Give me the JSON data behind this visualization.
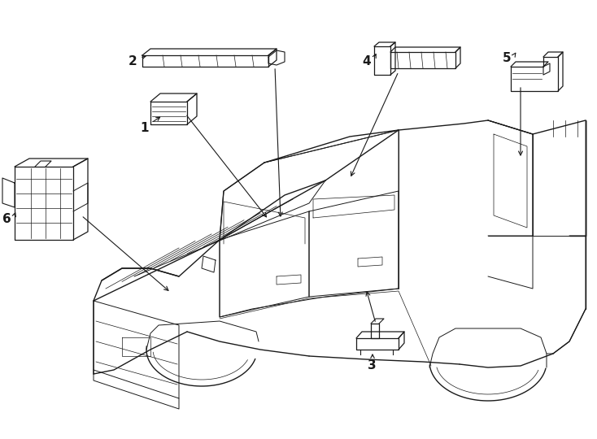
{
  "background_color": "#ffffff",
  "line_color": "#1a1a1a",
  "fig_width": 7.34,
  "fig_height": 5.4,
  "dpi": 100,
  "truck_lw": 1.0,
  "detail_lw": 0.7,
  "thin_lw": 0.5,
  "component_lw": 0.9,
  "arrow_lw": 0.8
}
